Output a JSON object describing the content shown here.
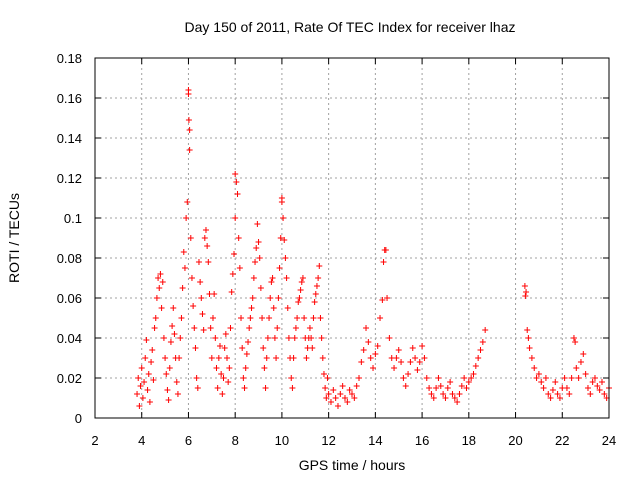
{
  "chart_data": {
    "type": "scatter",
    "title": "Day 150 of 2011, Rate Of TEC Index for receiver lhaz",
    "xlabel": "GPS time / hours",
    "ylabel": "ROTI / TECUs",
    "xlim": [
      2,
      24
    ],
    "ylim": [
      0,
      0.18
    ],
    "xticks": [
      "2",
      "4",
      "6",
      "8",
      "10",
      "12",
      "14",
      "16",
      "18",
      "20",
      "22",
      "24"
    ],
    "yticks": [
      "0",
      "0.02",
      "0.04",
      "0.06",
      "0.08",
      "0.1",
      "0.12",
      "0.14",
      "0.16",
      "0.18"
    ],
    "grid": true,
    "marker": "+",
    "color": "#ff0000",
    "series": [
      {
        "points": [
          [
            3.8,
            0.012
          ],
          [
            3.85,
            0.02
          ],
          [
            3.9,
            0.006
          ],
          [
            3.95,
            0.016
          ],
          [
            4.0,
            0.025
          ],
          [
            4.05,
            0.01
          ],
          [
            4.1,
            0.018
          ],
          [
            4.15,
            0.03
          ],
          [
            4.2,
            0.039
          ],
          [
            4.25,
            0.014
          ],
          [
            4.3,
            0.022
          ],
          [
            4.35,
            0.008
          ],
          [
            4.4,
            0.028
          ],
          [
            4.45,
            0.034
          ],
          [
            4.5,
            0.019
          ],
          [
            4.55,
            0.045
          ],
          [
            4.6,
            0.05
          ],
          [
            4.65,
            0.06
          ],
          [
            4.7,
            0.07
          ],
          [
            4.75,
            0.065
          ],
          [
            4.8,
            0.072
          ],
          [
            4.85,
            0.055
          ],
          [
            4.9,
            0.068
          ],
          [
            4.95,
            0.04
          ],
          [
            5.0,
            0.03
          ],
          [
            5.05,
            0.022
          ],
          [
            5.1,
            0.014
          ],
          [
            5.15,
            0.009
          ],
          [
            5.2,
            0.025
          ],
          [
            5.25,
            0.038
          ],
          [
            5.3,
            0.046
          ],
          [
            5.35,
            0.055
          ],
          [
            5.4,
            0.042
          ],
          [
            5.45,
            0.03
          ],
          [
            5.5,
            0.018
          ],
          [
            5.55,
            0.012
          ],
          [
            5.6,
            0.03
          ],
          [
            5.65,
            0.04
          ],
          [
            5.7,
            0.05
          ],
          [
            5.75,
            0.065
          ],
          [
            5.8,
            0.083
          ],
          [
            5.85,
            0.075
          ],
          [
            5.9,
            0.1
          ],
          [
            5.95,
            0.108
          ],
          [
            6.0,
            0.164
          ],
          [
            6.0,
            0.162
          ],
          [
            6.02,
            0.149
          ],
          [
            6.05,
            0.144
          ],
          [
            6.05,
            0.134
          ],
          [
            6.1,
            0.09
          ],
          [
            6.15,
            0.07
          ],
          [
            6.2,
            0.056
          ],
          [
            6.25,
            0.045
          ],
          [
            6.3,
            0.035
          ],
          [
            6.35,
            0.02
          ],
          [
            6.4,
            0.015
          ],
          [
            6.45,
            0.078
          ],
          [
            6.5,
            0.068
          ],
          [
            6.55,
            0.06
          ],
          [
            6.6,
            0.052
          ],
          [
            6.65,
            0.044
          ],
          [
            6.7,
            0.09
          ],
          [
            6.75,
            0.094
          ],
          [
            6.8,
            0.086
          ],
          [
            6.85,
            0.078
          ],
          [
            6.9,
            0.062
          ],
          [
            6.95,
            0.045
          ],
          [
            7.0,
            0.03
          ],
          [
            7.05,
            0.05
          ],
          [
            7.1,
            0.062
          ],
          [
            7.15,
            0.04
          ],
          [
            7.2,
            0.025
          ],
          [
            7.25,
            0.015
          ],
          [
            7.3,
            0.03
          ],
          [
            7.35,
            0.036
          ],
          [
            7.4,
            0.022
          ],
          [
            7.45,
            0.012
          ],
          [
            7.5,
            0.02
          ],
          [
            7.55,
            0.035
          ],
          [
            7.6,
            0.042
          ],
          [
            7.65,
            0.03
          ],
          [
            7.7,
            0.018
          ],
          [
            7.75,
            0.025
          ],
          [
            7.8,
            0.045
          ],
          [
            7.85,
            0.063
          ],
          [
            7.9,
            0.072
          ],
          [
            7.95,
            0.082
          ],
          [
            8.0,
            0.1
          ],
          [
            8.0,
            0.122
          ],
          [
            8.05,
            0.118
          ],
          [
            8.1,
            0.112
          ],
          [
            8.15,
            0.09
          ],
          [
            8.2,
            0.075
          ],
          [
            8.25,
            0.05
          ],
          [
            8.3,
            0.035
          ],
          [
            8.35,
            0.02
          ],
          [
            8.4,
            0.015
          ],
          [
            8.45,
            0.025
          ],
          [
            8.5,
            0.032
          ],
          [
            8.55,
            0.038
          ],
          [
            8.6,
            0.045
          ],
          [
            8.65,
            0.05
          ],
          [
            8.7,
            0.055
          ],
          [
            8.75,
            0.06
          ],
          [
            8.8,
            0.07
          ],
          [
            8.85,
            0.078
          ],
          [
            8.9,
            0.085
          ],
          [
            8.95,
            0.097
          ],
          [
            9.0,
            0.088
          ],
          [
            9.05,
            0.08
          ],
          [
            9.1,
            0.065
          ],
          [
            9.15,
            0.05
          ],
          [
            9.2,
            0.035
          ],
          [
            9.25,
            0.025
          ],
          [
            9.3,
            0.015
          ],
          [
            9.35,
            0.03
          ],
          [
            9.4,
            0.04
          ],
          [
            9.45,
            0.05
          ],
          [
            9.5,
            0.06
          ],
          [
            9.55,
            0.068
          ],
          [
            9.6,
            0.07
          ],
          [
            9.65,
            0.055
          ],
          [
            9.7,
            0.04
          ],
          [
            9.75,
            0.03
          ],
          [
            9.8,
            0.045
          ],
          [
            9.85,
            0.06
          ],
          [
            9.9,
            0.075
          ],
          [
            9.95,
            0.09
          ],
          [
            10.0,
            0.11
          ],
          [
            10.0,
            0.108
          ],
          [
            10.05,
            0.1
          ],
          [
            10.1,
            0.089
          ],
          [
            10.15,
            0.08
          ],
          [
            10.2,
            0.07
          ],
          [
            10.25,
            0.055
          ],
          [
            10.3,
            0.04
          ],
          [
            10.35,
            0.03
          ],
          [
            10.4,
            0.02
          ],
          [
            10.45,
            0.015
          ],
          [
            10.5,
            0.03
          ],
          [
            10.55,
            0.04
          ],
          [
            10.6,
            0.045
          ],
          [
            10.65,
            0.05
          ],
          [
            10.7,
            0.058
          ],
          [
            10.75,
            0.06
          ],
          [
            10.8,
            0.064
          ],
          [
            10.85,
            0.068
          ],
          [
            10.9,
            0.07
          ],
          [
            10.95,
            0.05
          ],
          [
            11.0,
            0.04
          ],
          [
            11.05,
            0.03
          ],
          [
            11.1,
            0.035
          ],
          [
            11.15,
            0.04
          ],
          [
            11.2,
            0.045
          ],
          [
            11.25,
            0.04
          ],
          [
            11.3,
            0.035
          ],
          [
            11.35,
            0.05
          ],
          [
            11.4,
            0.058
          ],
          [
            11.45,
            0.062
          ],
          [
            11.5,
            0.066
          ],
          [
            11.55,
            0.07
          ],
          [
            11.6,
            0.076
          ],
          [
            11.65,
            0.05
          ],
          [
            11.7,
            0.04
          ],
          [
            11.75,
            0.03
          ],
          [
            11.8,
            0.022
          ],
          [
            11.85,
            0.015
          ],
          [
            11.9,
            0.01
          ],
          [
            11.95,
            0.02
          ],
          [
            12.0,
            0.012
          ],
          [
            12.1,
            0.008
          ],
          [
            12.2,
            0.014
          ],
          [
            12.3,
            0.01
          ],
          [
            12.4,
            0.006
          ],
          [
            12.5,
            0.012
          ],
          [
            12.6,
            0.016
          ],
          [
            12.7,
            0.01
          ],
          [
            12.8,
            0.008
          ],
          [
            12.9,
            0.014
          ],
          [
            13.0,
            0.012
          ],
          [
            13.1,
            0.01
          ],
          [
            13.2,
            0.016
          ],
          [
            13.3,
            0.02
          ],
          [
            13.4,
            0.028
          ],
          [
            13.5,
            0.034
          ],
          [
            13.6,
            0.045
          ],
          [
            13.7,
            0.038
          ],
          [
            13.8,
            0.03
          ],
          [
            13.9,
            0.025
          ],
          [
            14.0,
            0.032
          ],
          [
            14.1,
            0.036
          ],
          [
            14.2,
            0.05
          ],
          [
            14.3,
            0.059
          ],
          [
            14.35,
            0.078
          ],
          [
            14.4,
            0.084
          ],
          [
            14.45,
            0.084
          ],
          [
            14.5,
            0.06
          ],
          [
            14.6,
            0.04
          ],
          [
            14.7,
            0.03
          ],
          [
            14.8,
            0.025
          ],
          [
            14.9,
            0.03
          ],
          [
            15.0,
            0.034
          ],
          [
            15.1,
            0.028
          ],
          [
            15.2,
            0.02
          ],
          [
            15.3,
            0.016
          ],
          [
            15.4,
            0.022
          ],
          [
            15.5,
            0.028
          ],
          [
            15.6,
            0.035
          ],
          [
            15.7,
            0.03
          ],
          [
            15.8,
            0.024
          ],
          [
            15.9,
            0.028
          ],
          [
            16.0,
            0.036
          ],
          [
            16.1,
            0.03
          ],
          [
            16.2,
            0.02
          ],
          [
            16.3,
            0.015
          ],
          [
            16.4,
            0.012
          ],
          [
            16.5,
            0.01
          ],
          [
            16.6,
            0.015
          ],
          [
            16.7,
            0.02
          ],
          [
            16.8,
            0.016
          ],
          [
            16.9,
            0.012
          ],
          [
            17.0,
            0.01
          ],
          [
            17.1,
            0.015
          ],
          [
            17.2,
            0.018
          ],
          [
            17.3,
            0.012
          ],
          [
            17.4,
            0.01
          ],
          [
            17.5,
            0.008
          ],
          [
            17.6,
            0.012
          ],
          [
            17.7,
            0.016
          ],
          [
            17.8,
            0.02
          ],
          [
            17.9,
            0.015
          ],
          [
            18.0,
            0.018
          ],
          [
            18.1,
            0.02
          ],
          [
            18.2,
            0.022
          ],
          [
            18.3,
            0.026
          ],
          [
            18.4,
            0.03
          ],
          [
            18.5,
            0.034
          ],
          [
            18.6,
            0.038
          ],
          [
            18.7,
            0.044
          ],
          [
            20.4,
            0.066
          ],
          [
            20.42,
            0.061
          ],
          [
            20.45,
            0.063
          ],
          [
            20.5,
            0.044
          ],
          [
            20.55,
            0.04
          ],
          [
            20.6,
            0.035
          ],
          [
            20.7,
            0.03
          ],
          [
            20.8,
            0.025
          ],
          [
            20.9,
            0.02
          ],
          [
            21.0,
            0.022
          ],
          [
            21.1,
            0.018
          ],
          [
            21.2,
            0.015
          ],
          [
            21.3,
            0.02
          ],
          [
            21.4,
            0.012
          ],
          [
            21.5,
            0.01
          ],
          [
            21.6,
            0.014
          ],
          [
            21.7,
            0.018
          ],
          [
            21.8,
            0.012
          ],
          [
            21.9,
            0.01
          ],
          [
            22.0,
            0.015
          ],
          [
            22.1,
            0.02
          ],
          [
            22.2,
            0.015
          ],
          [
            22.3,
            0.012
          ],
          [
            22.4,
            0.02
          ],
          [
            22.5,
            0.04
          ],
          [
            22.55,
            0.038
          ],
          [
            22.6,
            0.025
          ],
          [
            22.7,
            0.02
          ],
          [
            22.8,
            0.028
          ],
          [
            22.9,
            0.032
          ],
          [
            23.0,
            0.022
          ],
          [
            23.1,
            0.015
          ],
          [
            23.2,
            0.012
          ],
          [
            23.3,
            0.018
          ],
          [
            23.4,
            0.02
          ],
          [
            23.5,
            0.016
          ],
          [
            23.6,
            0.014
          ],
          [
            23.7,
            0.018
          ],
          [
            23.8,
            0.012
          ],
          [
            23.9,
            0.01
          ],
          [
            24.0,
            0.015
          ]
        ]
      }
    ]
  }
}
